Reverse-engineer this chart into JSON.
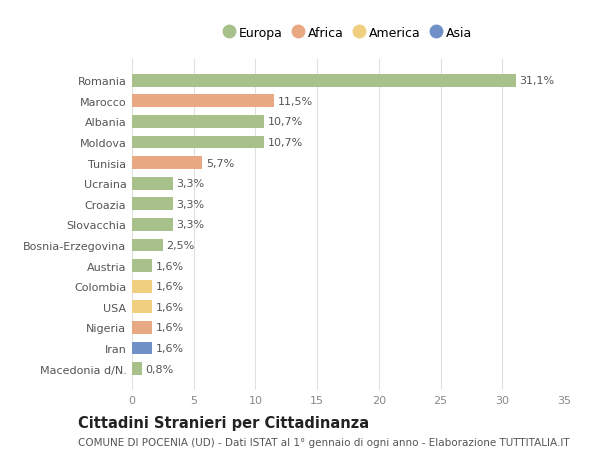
{
  "categories": [
    "Romania",
    "Marocco",
    "Albania",
    "Moldova",
    "Tunisia",
    "Ucraina",
    "Croazia",
    "Slovacchia",
    "Bosnia-Erzegovina",
    "Austria",
    "Colombia",
    "USA",
    "Nigeria",
    "Iran",
    "Macedonia d/N."
  ],
  "values": [
    31.1,
    11.5,
    10.7,
    10.7,
    5.7,
    3.3,
    3.3,
    3.3,
    2.5,
    1.6,
    1.6,
    1.6,
    1.6,
    1.6,
    0.8
  ],
  "labels": [
    "31,1%",
    "11,5%",
    "10,7%",
    "10,7%",
    "5,7%",
    "3,3%",
    "3,3%",
    "3,3%",
    "2,5%",
    "1,6%",
    "1,6%",
    "1,6%",
    "1,6%",
    "1,6%",
    "0,8%"
  ],
  "continents": [
    "Europa",
    "Africa",
    "Europa",
    "Europa",
    "Africa",
    "Europa",
    "Europa",
    "Europa",
    "Europa",
    "Europa",
    "America",
    "America",
    "Africa",
    "Asia",
    "Europa"
  ],
  "continent_colors": {
    "Europa": "#a8c08a",
    "Africa": "#e8a882",
    "America": "#f0d080",
    "Asia": "#7090c8"
  },
  "legend_order": [
    "Europa",
    "Africa",
    "America",
    "Asia"
  ],
  "title": "Cittadini Stranieri per Cittadinanza",
  "subtitle": "COMUNE DI POCENIA (UD) - Dati ISTAT al 1° gennaio di ogni anno - Elaborazione TUTTITALIA.IT",
  "xlim": [
    0,
    35
  ],
  "xticks": [
    0,
    5,
    10,
    15,
    20,
    25,
    30,
    35
  ],
  "background_color": "#ffffff",
  "grid_color": "#e0e0e0",
  "bar_height": 0.62,
  "label_fontsize": 8,
  "tick_fontsize": 8,
  "title_fontsize": 10.5,
  "subtitle_fontsize": 7.5
}
